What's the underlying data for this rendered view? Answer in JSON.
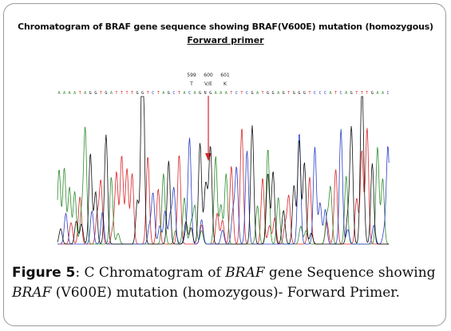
{
  "figure": {
    "title": "Chromatogram of BRAF gene sequence showing  BRAF(V600E) mutation (homozygous)",
    "subtitle": "Forward primer",
    "positions": [
      {
        "number": "599",
        "residue": "T"
      },
      {
        "number": "600",
        "residue": "V/E"
      },
      {
        "number": "601",
        "residue": "K"
      }
    ],
    "base_calls": "AAAATAGGTGATTTTGGTCTAGCTACAGNGAAATCTCGATGGAGTGGGTCCCATCAGTTTGAAC",
    "colors": {
      "A": "#2e8b2e",
      "C": "#2a3fc4",
      "G": "#111111",
      "T": "#d6262a",
      "arrow": "#d6262a"
    }
  },
  "caption": {
    "label": "Figure 5",
    "p1": ": C Chromatogram of ",
    "g1": "BRAF",
    "p2": " gene Sequence showing ",
    "g2": "BRAF",
    "p3": " (V600E) mutation (homozygous)- Forward Primer."
  }
}
